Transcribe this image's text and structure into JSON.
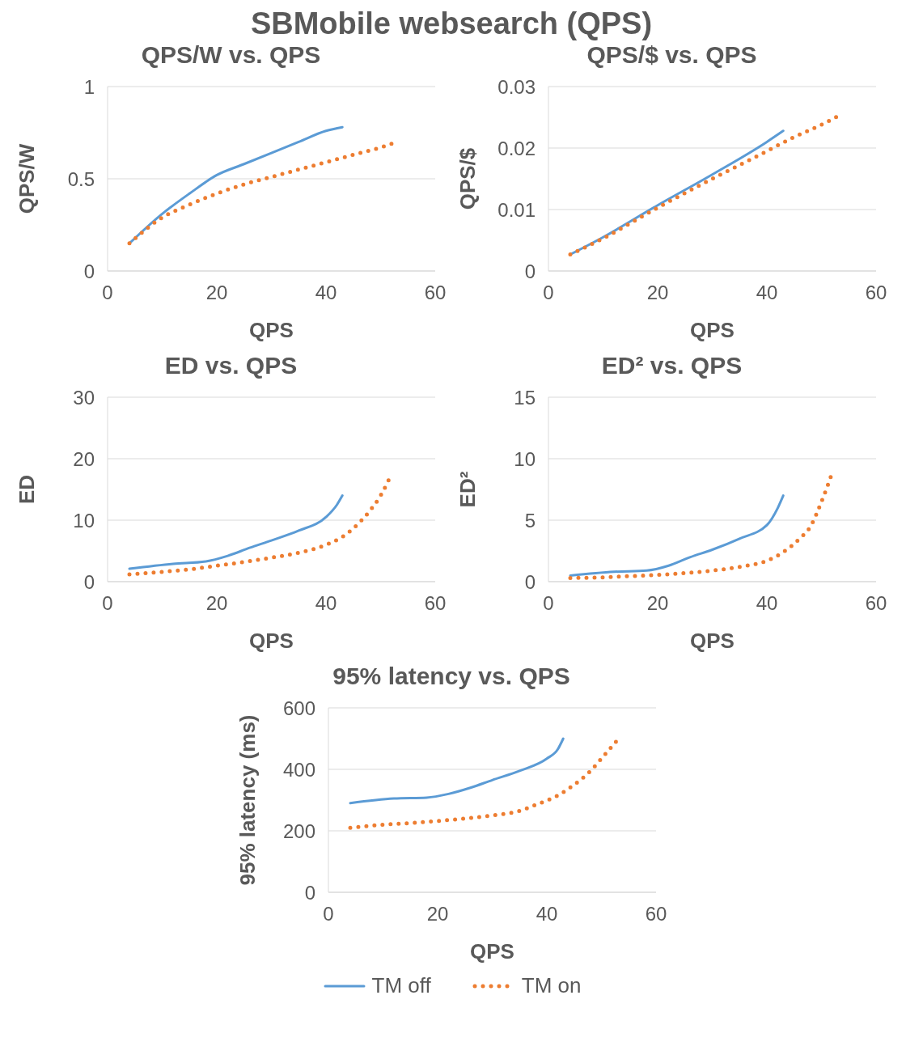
{
  "chart_data": [
    {
      "type": "line",
      "title": "QPS/W vs. QPS",
      "annotations": [
        "SBMobile websearch (QPS)"
      ],
      "xlabel": "QPS",
      "ylabel": "QPS/W",
      "xlim": [
        0,
        60
      ],
      "xticks": [
        0,
        20,
        40,
        60
      ],
      "ylim": [
        0,
        1
      ],
      "yticks": [
        0,
        0.5,
        1
      ],
      "grid": "y",
      "legend": false,
      "series": [
        {
          "color": "#5b9bd5",
          "line_style": "solid",
          "x": [
            4,
            10,
            15,
            20,
            25,
            30,
            35,
            40,
            43
          ],
          "values": [
            0.15,
            0.31,
            0.42,
            0.52,
            0.58,
            0.64,
            0.7,
            0.76,
            0.78
          ]
        },
        {
          "color": "#ed7d31",
          "line_style": "dotted",
          "x": [
            4,
            10,
            15,
            20,
            25,
            30,
            35,
            40,
            45,
            50,
            53
          ],
          "values": [
            0.15,
            0.29,
            0.36,
            0.42,
            0.47,
            0.51,
            0.55,
            0.59,
            0.63,
            0.67,
            0.7
          ]
        }
      ]
    },
    {
      "type": "line",
      "title": "QPS/$ vs. QPS",
      "xlabel": "QPS",
      "ylabel": "QPS/$",
      "xlim": [
        0,
        60
      ],
      "xticks": [
        0,
        20,
        40,
        60
      ],
      "ylim": [
        0,
        0.03
      ],
      "yticks": [
        0,
        0.01,
        0.02,
        0.03
      ],
      "grid": "y",
      "legend": false,
      "series": [
        {
          "color": "#5b9bd5",
          "line_style": "solid",
          "x": [
            4,
            10,
            20,
            30,
            40,
            43
          ],
          "values": [
            0.0027,
            0.0055,
            0.0107,
            0.0157,
            0.021,
            0.0228
          ]
        },
        {
          "color": "#ed7d31",
          "line_style": "dotted",
          "x": [
            4,
            10,
            20,
            30,
            40,
            45,
            50,
            53
          ],
          "values": [
            0.0027,
            0.0053,
            0.0103,
            0.015,
            0.0195,
            0.0218,
            0.0238,
            0.0252
          ]
        }
      ]
    },
    {
      "type": "line",
      "title": "ED vs. QPS",
      "xlabel": "QPS",
      "ylabel": "ED",
      "xlim": [
        0,
        60
      ],
      "xticks": [
        0,
        20,
        40,
        60
      ],
      "ylim": [
        0,
        30
      ],
      "yticks": [
        0,
        10,
        20,
        30
      ],
      "grid": "y",
      "legend": false,
      "series": [
        {
          "color": "#5b9bd5",
          "line_style": "solid",
          "x": [
            4,
            12,
            18,
            22,
            26,
            30,
            35,
            40,
            42,
            43
          ],
          "values": [
            2.1,
            2.9,
            3.3,
            4.2,
            5.5,
            6.7,
            8.3,
            10.5,
            12.5,
            14
          ]
        },
        {
          "color": "#ed7d31",
          "line_style": "dotted",
          "x": [
            4,
            10,
            15,
            20,
            25,
            30,
            35,
            40,
            43,
            46,
            48,
            50,
            52
          ],
          "values": [
            1.2,
            1.6,
            2,
            2.6,
            3.2,
            3.9,
            4.7,
            6,
            7.3,
            9.5,
            11.5,
            14,
            17.5
          ]
        }
      ]
    },
    {
      "type": "line",
      "title": "ED² vs. QPS",
      "xlabel": "QPS",
      "ylabel": "ED²",
      "xlim": [
        0,
        60
      ],
      "xticks": [
        0,
        20,
        40,
        60
      ],
      "ylim": [
        0,
        15
      ],
      "yticks": [
        0,
        5,
        10,
        15
      ],
      "grid": "y",
      "legend": false,
      "series": [
        {
          "color": "#5b9bd5",
          "line_style": "solid",
          "x": [
            4,
            12,
            18,
            22,
            26,
            30,
            35,
            40,
            42,
            43
          ],
          "values": [
            0.5,
            0.8,
            0.9,
            1.3,
            2,
            2.6,
            3.5,
            4.6,
            6,
            7
          ]
        },
        {
          "color": "#ed7d31",
          "line_style": "dotted",
          "x": [
            4,
            10,
            15,
            20,
            25,
            30,
            35,
            40,
            43,
            46,
            48,
            50,
            52
          ],
          "values": [
            0.3,
            0.35,
            0.45,
            0.55,
            0.7,
            0.9,
            1.2,
            1.7,
            2.4,
            3.5,
            4.5,
            6.5,
            8.9
          ]
        }
      ]
    },
    {
      "type": "line",
      "title": "95% latency vs. QPS",
      "xlabel": "QPS",
      "ylabel": "95% latency (ms)",
      "xlim": [
        0,
        60
      ],
      "xticks": [
        0,
        20,
        40,
        60
      ],
      "ylim": [
        0,
        600
      ],
      "yticks": [
        0,
        200,
        400,
        600
      ],
      "grid": "y",
      "legend": "bottom",
      "series": [
        {
          "name": "TM off",
          "color": "#5b9bd5",
          "line_style": "solid",
          "x": [
            4,
            12,
            18,
            22,
            26,
            30,
            35,
            40,
            42,
            43
          ],
          "values": [
            290,
            305,
            308,
            320,
            340,
            365,
            395,
            435,
            465,
            500
          ]
        },
        {
          "name": "TM on",
          "color": "#ed7d31",
          "line_style": "dotted",
          "x": [
            4,
            10,
            15,
            20,
            25,
            30,
            35,
            38,
            42,
            45,
            48,
            50,
            53
          ],
          "values": [
            210,
            220,
            225,
            232,
            240,
            250,
            265,
            285,
            315,
            350,
            395,
            435,
            497
          ]
        }
      ]
    }
  ]
}
